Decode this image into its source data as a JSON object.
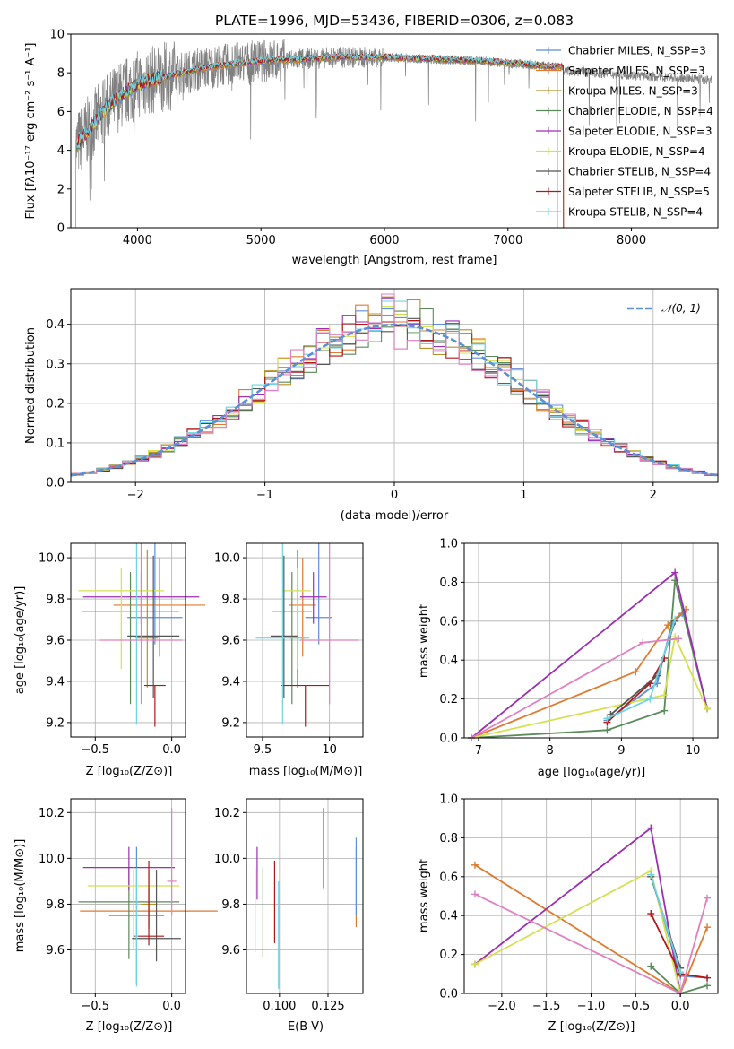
{
  "chart_data": [
    {
      "id": "spectrum",
      "type": "line",
      "title": "PLATE=1996, MJD=53436, FIBERID=0306, z=0.083",
      "xlabel": "wavelength [Angstrom, rest frame]",
      "ylabel": "Flux [fλ10⁻¹⁷ erg cm⁻² s⁻¹ A⁻¹]",
      "xlim": [
        3460,
        8700
      ],
      "ylim": [
        0,
        10
      ],
      "xticks": [
        4000,
        5000,
        6000,
        7000,
        8000
      ],
      "yticks": [
        0,
        2,
        4,
        6,
        8,
        10
      ],
      "grid": false,
      "legend_position": "right",
      "observed_color": "#808080",
      "model_continuum": {
        "x": [
          3500,
          3600,
          3700,
          3800,
          3900,
          4000,
          4100,
          4300,
          4500,
          4700,
          5000,
          5300,
          5600,
          6000,
          6400,
          6800,
          7000,
          7200,
          7400
        ],
        "y": [
          4.2,
          5.0,
          5.8,
          6.5,
          7.0,
          7.4,
          7.6,
          7.9,
          8.2,
          8.4,
          8.6,
          8.7,
          8.8,
          8.8,
          8.7,
          8.6,
          8.5,
          8.4,
          8.3
        ]
      },
      "series": [
        {
          "name": "Chabrier MILES, N_SSP=3",
          "color": "#5b8fd6"
        },
        {
          "name": "Salpeter MILES, N_SSP=3",
          "color": "#e07a30"
        },
        {
          "name": "Kroupa MILES, N_SSP=3",
          "color": "#b8902c"
        },
        {
          "name": "Chabrier ELODIE, N_SSP=4",
          "color": "#5a8a5a"
        },
        {
          "name": "Salpeter ELODIE, N_SSP=3",
          "color": "#9b2fb0"
        },
        {
          "name": "Kroupa ELODIE, N_SSP=4",
          "color": "#d4e050"
        },
        {
          "name": "Chabrier STELIB, N_SSP=4",
          "color": "#555555"
        },
        {
          "name": "Salpeter STELIB, N_SSP=5",
          "color": "#b01818"
        },
        {
          "name": "Kroupa STELIB, N_SSP=4",
          "color": "#6fd4e0"
        }
      ]
    },
    {
      "id": "residuals",
      "type": "bar",
      "xlabel": "(data-model)/error",
      "ylabel": "Normed distribution",
      "xlim": [
        -2.5,
        2.5
      ],
      "ylim": [
        0,
        0.49
      ],
      "xticks": [
        -2,
        -1,
        0,
        1,
        2
      ],
      "yticks": [
        0.0,
        0.1,
        0.2,
        0.3,
        0.4
      ],
      "grid": true,
      "legend_position": "top-right",
      "legend": "𝒩(0, 1)",
      "gaussian_color": "#5b8fd6",
      "bin_width": 0.1,
      "hist_colors": [
        "#5b8fd6",
        "#e07a30",
        "#b8902c",
        "#5a8a5a",
        "#9b2fb0",
        "#d4e050",
        "#555555",
        "#b01818",
        "#6fd4e0",
        "#e080c0"
      ]
    },
    {
      "id": "age_vs_Z",
      "type": "scatter",
      "xlabel": "Z [log₁₀(Z/Z⊙)]",
      "ylabel": "age  [log₁₀(age/yr)]",
      "xlim": [
        -0.66,
        0.09
      ],
      "ylim": [
        9.13,
        10.07
      ],
      "xticks": [
        -0.5,
        0.0
      ],
      "xticklabels": [
        "−0.5",
        "0.0"
      ],
      "yticks": [
        9.2,
        9.4,
        9.6,
        9.8,
        10.0
      ],
      "grid": true,
      "points": [
        {
          "x": -0.11,
          "y": 9.71,
          "xerr": 0.18,
          "yerr_lo": 0.13,
          "yerr_hi": 0.36,
          "color": "#5b8fd6"
        },
        {
          "x": -0.08,
          "y": 9.77,
          "xerr": 0.3,
          "yerr_lo": 0.25,
          "yerr_hi": 0.23,
          "color": "#e07a30"
        },
        {
          "x": -0.16,
          "y": 9.61,
          "xerr": 0.07,
          "yerr_lo": 0.24,
          "yerr_hi": 0.43,
          "color": "#b8902c"
        },
        {
          "x": -0.27,
          "y": 9.74,
          "xerr": 0.32,
          "yerr_lo": 0.45,
          "yerr_hi": 0.19,
          "color": "#5a8a5a"
        },
        {
          "x": -0.2,
          "y": 9.81,
          "xerr": 0.38,
          "yerr_lo": 0.13,
          "yerr_hi": 0.12,
          "color": "#9b2fb0"
        },
        {
          "x": -0.33,
          "y": 9.84,
          "xerr": 0.28,
          "yerr_lo": 0.38,
          "yerr_hi": 0.11,
          "color": "#d4e050"
        },
        {
          "x": -0.12,
          "y": 9.62,
          "xerr": 0.17,
          "yerr_lo": 0.3,
          "yerr_hi": 0.39,
          "color": "#555555"
        },
        {
          "x": -0.11,
          "y": 9.38,
          "xerr": 0.07,
          "yerr_lo": 0.2,
          "yerr_hi": 0.0,
          "color": "#b01818"
        },
        {
          "x": -0.23,
          "y": 9.61,
          "xerr": 0.01,
          "yerr_lo": 0.42,
          "yerr_hi": 0.46,
          "color": "#6fd4e0"
        },
        {
          "x": -0.2,
          "y": 9.6,
          "xerr": 0.27,
          "yerr_lo": 0.31,
          "yerr_hi": 0.47,
          "color": "#e080c0"
        }
      ]
    },
    {
      "id": "age_vs_mass",
      "type": "scatter",
      "xlabel": "mass [log₁₀(M/M⊙)]",
      "ylabel": "",
      "xlim": [
        9.38,
        10.25
      ],
      "ylim": [
        9.13,
        10.07
      ],
      "xticks": [
        9.5,
        10.0
      ],
      "yticks": [
        9.2,
        9.4,
        9.6,
        9.8,
        10.0
      ],
      "grid": true,
      "points": [
        {
          "x": 9.92,
          "y": 9.71,
          "xerr": 0.1,
          "yerr_lo": 0.13,
          "yerr_hi": 0.36,
          "color": "#5b8fd6"
        },
        {
          "x": 9.8,
          "y": 9.77,
          "xerr": 0.1,
          "yerr_lo": 0.25,
          "yerr_hi": 0.23,
          "color": "#e07a30"
        },
        {
          "x": 9.76,
          "y": 9.61,
          "xerr": 0.06,
          "yerr_lo": 0.24,
          "yerr_hi": 0.43,
          "color": "#b8902c"
        },
        {
          "x": 9.72,
          "y": 9.74,
          "xerr": 0.15,
          "yerr_lo": 0.45,
          "yerr_hi": 0.19,
          "color": "#5a8a5a"
        },
        {
          "x": 9.88,
          "y": 9.81,
          "xerr": 0.1,
          "yerr_lo": 0.13,
          "yerr_hi": 0.12,
          "color": "#9b2fb0"
        },
        {
          "x": 9.76,
          "y": 9.84,
          "xerr": 0.1,
          "yerr_lo": 0.38,
          "yerr_hi": 0.11,
          "color": "#d4e050"
        },
        {
          "x": 9.66,
          "y": 9.62,
          "xerr": 0.1,
          "yerr_lo": 0.3,
          "yerr_hi": 0.39,
          "color": "#555555"
        },
        {
          "x": 9.82,
          "y": 9.38,
          "xerr": 0.18,
          "yerr_lo": 0.2,
          "yerr_hi": 0.0,
          "color": "#b01818"
        },
        {
          "x": 9.65,
          "y": 9.61,
          "xerr": 0.2,
          "yerr_lo": 0.42,
          "yerr_hi": 0.46,
          "color": "#6fd4e0"
        },
        {
          "x": 10.0,
          "y": 9.6,
          "xerr": 0.22,
          "yerr_lo": 0.31,
          "yerr_hi": 0.47,
          "color": "#e080c0"
        }
      ]
    },
    {
      "id": "weight_vs_age",
      "type": "line",
      "xlabel": "age  [log₁₀(age/yr)]",
      "ylabel": "mass weight",
      "xlim": [
        6.8,
        10.35
      ],
      "ylim": [
        0.0,
        1.0
      ],
      "xticks": [
        7,
        8,
        9,
        10
      ],
      "yticks": [
        0.0,
        0.2,
        0.4,
        0.6,
        0.8,
        1.0
      ],
      "grid": true,
      "series": [
        {
          "color": "#5b8fd6",
          "x": [
            8.8,
            9.5,
            9.7,
            9.85
          ],
          "y": [
            0.09,
            0.28,
            0.58,
            0.64
          ]
        },
        {
          "color": "#e07a30",
          "x": [
            6.9,
            9.2,
            9.65,
            9.9
          ],
          "y": [
            0.0,
            0.34,
            0.58,
            0.66
          ]
        },
        {
          "color": "#5a8a5a",
          "x": [
            6.9,
            8.8,
            9.6,
            9.75,
            10.2
          ],
          "y": [
            0.0,
            0.04,
            0.14,
            0.81,
            0.15
          ]
        },
        {
          "color": "#9b2fb0",
          "x": [
            6.9,
            9.75,
            10.2
          ],
          "y": [
            0.0,
            0.85,
            0.15
          ]
        },
        {
          "color": "#d4e050",
          "x": [
            6.9,
            9.6,
            9.75,
            10.2
          ],
          "y": [
            0.0,
            0.22,
            0.52,
            0.15
          ]
        },
        {
          "color": "#b01818",
          "x": [
            8.8,
            9.4,
            9.6
          ],
          "y": [
            0.08,
            0.28,
            0.41
          ]
        },
        {
          "color": "#555555",
          "x": [
            8.85,
            9.5,
            9.75
          ],
          "y": [
            0.12,
            0.32,
            0.6
          ]
        },
        {
          "color": "#6fd4e0",
          "x": [
            8.8,
            9.4,
            9.75
          ],
          "y": [
            0.1,
            0.2,
            0.61
          ]
        },
        {
          "color": "#e080c0",
          "x": [
            6.9,
            9.3,
            9.8
          ],
          "y": [
            0.0,
            0.49,
            0.51
          ]
        }
      ]
    },
    {
      "id": "mass_vs_Z",
      "type": "scatter",
      "xlabel": "Z [log₁₀(Z/Z⊙)]",
      "ylabel": "mass [log₁₀(M/M⊙)]",
      "xlim": [
        -0.66,
        0.09
      ],
      "ylim": [
        9.41,
        10.26
      ],
      "xticks": [
        -0.5,
        0.0
      ],
      "xticklabels": [
        "−0.5",
        "0.0"
      ],
      "yticks": [
        9.6,
        9.8,
        10.0,
        10.2
      ],
      "grid": true,
      "points": [
        {
          "x": -0.23,
          "y": 9.75,
          "xerr": 0.18,
          "yerr_lo": 0.3,
          "yerr_hi": 0.3,
          "color": "#5b8fd6"
        },
        {
          "x": -0.15,
          "y": 9.77,
          "xerr": 0.45,
          "yerr_lo": 0.08,
          "yerr_hi": 0.1,
          "color": "#e07a30"
        },
        {
          "x": -0.15,
          "y": 9.8,
          "xerr": 0.05,
          "yerr_lo": 0.1,
          "yerr_hi": 0.15,
          "color": "#b8902c"
        },
        {
          "x": -0.28,
          "y": 9.81,
          "xerr": 0.33,
          "yerr_lo": 0.25,
          "yerr_hi": 0.15,
          "color": "#5a8a5a"
        },
        {
          "x": -0.28,
          "y": 9.96,
          "xerr": 0.3,
          "yerr_lo": 0.1,
          "yerr_hi": 0.09,
          "color": "#9b2fb0"
        },
        {
          "x": -0.25,
          "y": 9.88,
          "xerr": 0.3,
          "yerr_lo": 0.28,
          "yerr_hi": 0.08,
          "color": "#d4e050"
        },
        {
          "x": -0.1,
          "y": 9.65,
          "xerr": 0.16,
          "yerr_lo": 0.1,
          "yerr_hi": 0.3,
          "color": "#555555"
        },
        {
          "x": -0.15,
          "y": 9.66,
          "xerr": 0.1,
          "yerr_lo": 0.04,
          "yerr_hi": 0.33,
          "color": "#b01818"
        },
        {
          "x": -0.23,
          "y": 9.66,
          "xerr": 0.01,
          "yerr_lo": 0.22,
          "yerr_hi": 0.3,
          "color": "#6fd4e0"
        },
        {
          "x": 0.0,
          "y": 9.9,
          "xerr": 0.03,
          "yerr_lo": 0.15,
          "yerr_hi": 0.32,
          "color": "#e080c0"
        }
      ]
    },
    {
      "id": "mass_vs_ebv",
      "type": "scatter",
      "xlabel": "E(B-V)",
      "ylabel": "",
      "xlim": [
        0.083,
        0.143
      ],
      "ylim": [
        9.41,
        10.26
      ],
      "xticks": [
        0.1,
        0.125
      ],
      "xticklabels": [
        "0.100",
        "0.125"
      ],
      "yticks": [
        9.6,
        9.8,
        10.0,
        10.2
      ],
      "grid": true,
      "points": [
        {
          "x": 0.0875,
          "y": 9.74,
          "yerr_lo": 0.15,
          "yerr_hi": 0.22,
          "color": "#d4e050"
        },
        {
          "x": 0.0885,
          "y": 9.97,
          "yerr_lo": 0.15,
          "yerr_hi": 0.08,
          "color": "#9b2fb0"
        },
        {
          "x": 0.0915,
          "y": 9.8,
          "yerr_lo": 0.23,
          "yerr_hi": 0.16,
          "color": "#5a8a5a"
        },
        {
          "x": 0.0975,
          "y": 9.8,
          "yerr_lo": 0.17,
          "yerr_hi": 0.19,
          "color": "#b01818"
        },
        {
          "x": 0.0995,
          "y": 9.66,
          "yerr_lo": 0.23,
          "yerr_hi": 0.24,
          "color": "#6fd4e0"
        },
        {
          "x": 0.1225,
          "y": 10.05,
          "yerr_lo": 0.18,
          "yerr_hi": 0.17,
          "color": "#e080c0"
        },
        {
          "x": 0.1395,
          "y": 9.87,
          "yerr_lo": 0.17,
          "yerr_hi": 0.18,
          "color": "#e07a30"
        },
        {
          "x": 0.1395,
          "y": 9.9,
          "yerr_lo": 0.15,
          "yerr_hi": 0.19,
          "color": "#5b8fd6"
        }
      ]
    },
    {
      "id": "weight_vs_Z",
      "type": "line",
      "xlabel": "Z [log₁₀(Z/Z⊙)]",
      "ylabel": "mass weight",
      "xlim": [
        -2.42,
        0.42
      ],
      "ylim": [
        0.0,
        1.0
      ],
      "xticks": [
        -2.0,
        -1.5,
        -1.0,
        -0.5,
        0.0
      ],
      "xticklabels": [
        "−2.0",
        "−1.5",
        "−1.0",
        "−0.5",
        "0.0"
      ],
      "yticks": [
        0.0,
        0.2,
        0.4,
        0.6,
        0.8,
        1.0
      ],
      "grid": true,
      "series": [
        {
          "color": "#5b8fd6",
          "x": [
            -0.33,
            0.0,
            0.3
          ],
          "y": [
            0.61,
            0.09,
            0.08
          ]
        },
        {
          "color": "#e07a30",
          "x": [
            -2.3,
            0.0,
            0.3
          ],
          "y": [
            0.66,
            0.0,
            0.34
          ]
        },
        {
          "color": "#5a8a5a",
          "x": [
            -0.33,
            0.0,
            0.3
          ],
          "y": [
            0.14,
            0.0,
            0.04
          ]
        },
        {
          "color": "#9b2fb0",
          "x": [
            -2.3,
            -0.33,
            0.0
          ],
          "y": [
            0.15,
            0.85,
            0.0
          ]
        },
        {
          "color": "#d4e050",
          "x": [
            -2.3,
            -0.33,
            0.0
          ],
          "y": [
            0.15,
            0.63,
            0.0
          ]
        },
        {
          "color": "#b01818",
          "x": [
            -0.33,
            0.0,
            0.3
          ],
          "y": [
            0.41,
            0.1,
            0.08
          ]
        },
        {
          "color": "#555555",
          "x": [
            -0.33,
            0.0
          ],
          "y": [
            0.6,
            0.13
          ]
        },
        {
          "color": "#6fd4e0",
          "x": [
            -0.33,
            0.0
          ],
          "y": [
            0.61,
            0.11
          ]
        },
        {
          "color": "#e080c0",
          "x": [
            -2.3,
            0.0,
            0.3
          ],
          "y": [
            0.51,
            0.0,
            0.49
          ]
        }
      ]
    }
  ]
}
